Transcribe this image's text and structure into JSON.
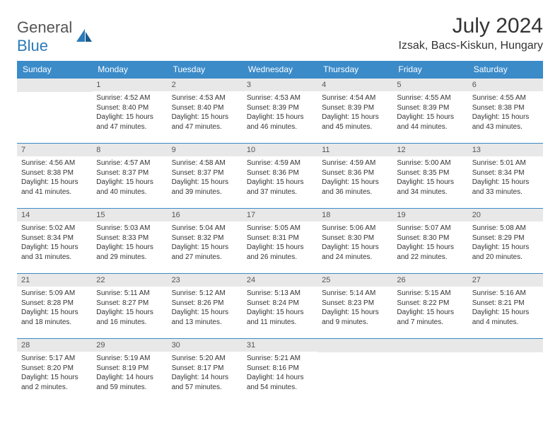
{
  "logo": {
    "word1": "General",
    "word2": "Blue"
  },
  "title": "July 2024",
  "location": "Izsak, Bacs-Kiskun, Hungary",
  "colors": {
    "header_bg": "#3b8bc9",
    "header_text": "#ffffff",
    "daynum_bg": "#e8e8e8",
    "border": "#3b8bc9",
    "text": "#333333",
    "logo_gray": "#555555",
    "logo_blue": "#2a7ab8",
    "background": "#ffffff"
  },
  "fonts": {
    "body_pt": 10,
    "daynum_pt": 11,
    "header_pt": 12,
    "title_pt": 30,
    "location_pt": 16
  },
  "dayHeaders": [
    "Sunday",
    "Monday",
    "Tuesday",
    "Wednesday",
    "Thursday",
    "Friday",
    "Saturday"
  ],
  "weeks": [
    [
      null,
      {
        "n": "1",
        "sr": "4:52 AM",
        "ss": "8:40 PM",
        "dl": "15 hours and 47 minutes."
      },
      {
        "n": "2",
        "sr": "4:53 AM",
        "ss": "8:40 PM",
        "dl": "15 hours and 47 minutes."
      },
      {
        "n": "3",
        "sr": "4:53 AM",
        "ss": "8:39 PM",
        "dl": "15 hours and 46 minutes."
      },
      {
        "n": "4",
        "sr": "4:54 AM",
        "ss": "8:39 PM",
        "dl": "15 hours and 45 minutes."
      },
      {
        "n": "5",
        "sr": "4:55 AM",
        "ss": "8:39 PM",
        "dl": "15 hours and 44 minutes."
      },
      {
        "n": "6",
        "sr": "4:55 AM",
        "ss": "8:38 PM",
        "dl": "15 hours and 43 minutes."
      }
    ],
    [
      {
        "n": "7",
        "sr": "4:56 AM",
        "ss": "8:38 PM",
        "dl": "15 hours and 41 minutes."
      },
      {
        "n": "8",
        "sr": "4:57 AM",
        "ss": "8:37 PM",
        "dl": "15 hours and 40 minutes."
      },
      {
        "n": "9",
        "sr": "4:58 AM",
        "ss": "8:37 PM",
        "dl": "15 hours and 39 minutes."
      },
      {
        "n": "10",
        "sr": "4:59 AM",
        "ss": "8:36 PM",
        "dl": "15 hours and 37 minutes."
      },
      {
        "n": "11",
        "sr": "4:59 AM",
        "ss": "8:36 PM",
        "dl": "15 hours and 36 minutes."
      },
      {
        "n": "12",
        "sr": "5:00 AM",
        "ss": "8:35 PM",
        "dl": "15 hours and 34 minutes."
      },
      {
        "n": "13",
        "sr": "5:01 AM",
        "ss": "8:34 PM",
        "dl": "15 hours and 33 minutes."
      }
    ],
    [
      {
        "n": "14",
        "sr": "5:02 AM",
        "ss": "8:34 PM",
        "dl": "15 hours and 31 minutes."
      },
      {
        "n": "15",
        "sr": "5:03 AM",
        "ss": "8:33 PM",
        "dl": "15 hours and 29 minutes."
      },
      {
        "n": "16",
        "sr": "5:04 AM",
        "ss": "8:32 PM",
        "dl": "15 hours and 27 minutes."
      },
      {
        "n": "17",
        "sr": "5:05 AM",
        "ss": "8:31 PM",
        "dl": "15 hours and 26 minutes."
      },
      {
        "n": "18",
        "sr": "5:06 AM",
        "ss": "8:30 PM",
        "dl": "15 hours and 24 minutes."
      },
      {
        "n": "19",
        "sr": "5:07 AM",
        "ss": "8:30 PM",
        "dl": "15 hours and 22 minutes."
      },
      {
        "n": "20",
        "sr": "5:08 AM",
        "ss": "8:29 PM",
        "dl": "15 hours and 20 minutes."
      }
    ],
    [
      {
        "n": "21",
        "sr": "5:09 AM",
        "ss": "8:28 PM",
        "dl": "15 hours and 18 minutes."
      },
      {
        "n": "22",
        "sr": "5:11 AM",
        "ss": "8:27 PM",
        "dl": "15 hours and 16 minutes."
      },
      {
        "n": "23",
        "sr": "5:12 AM",
        "ss": "8:26 PM",
        "dl": "15 hours and 13 minutes."
      },
      {
        "n": "24",
        "sr": "5:13 AM",
        "ss": "8:24 PM",
        "dl": "15 hours and 11 minutes."
      },
      {
        "n": "25",
        "sr": "5:14 AM",
        "ss": "8:23 PM",
        "dl": "15 hours and 9 minutes."
      },
      {
        "n": "26",
        "sr": "5:15 AM",
        "ss": "8:22 PM",
        "dl": "15 hours and 7 minutes."
      },
      {
        "n": "27",
        "sr": "5:16 AM",
        "ss": "8:21 PM",
        "dl": "15 hours and 4 minutes."
      }
    ],
    [
      {
        "n": "28",
        "sr": "5:17 AM",
        "ss": "8:20 PM",
        "dl": "15 hours and 2 minutes."
      },
      {
        "n": "29",
        "sr": "5:19 AM",
        "ss": "8:19 PM",
        "dl": "14 hours and 59 minutes."
      },
      {
        "n": "30",
        "sr": "5:20 AM",
        "ss": "8:17 PM",
        "dl": "14 hours and 57 minutes."
      },
      {
        "n": "31",
        "sr": "5:21 AM",
        "ss": "8:16 PM",
        "dl": "14 hours and 54 minutes."
      },
      null,
      null,
      null
    ]
  ],
  "labels": {
    "sunrise": "Sunrise:",
    "sunset": "Sunset:",
    "daylight": "Daylight:"
  }
}
